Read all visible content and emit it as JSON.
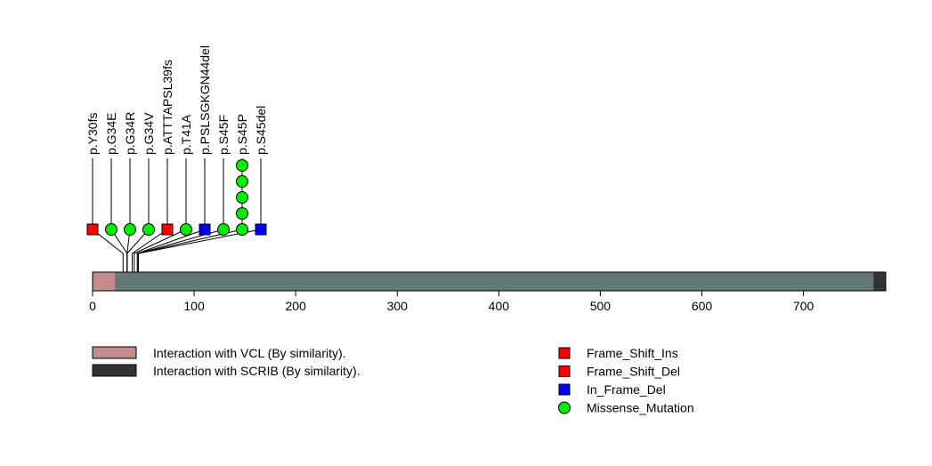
{
  "chart_data": {
    "type": "lollipop",
    "protein_length": 781,
    "x_axis": {
      "ticks": [
        0,
        100,
        200,
        300,
        400,
        500,
        600,
        700
      ],
      "range": [
        0,
        781
      ]
    },
    "domains": [
      {
        "name": "Interaction with VCL (By similarity).",
        "start": 1,
        "end": 22,
        "color": "#c48b8b"
      },
      {
        "name": "Interaction with SCRIB (By similarity).",
        "start": 770,
        "end": 781,
        "color": "#333333"
      }
    ],
    "backbone_color": "#627874",
    "mutations": [
      {
        "label": "p.Y30fs",
        "position": 30,
        "count": 1,
        "type": "Frame_Shift_Ins",
        "shape": "square"
      },
      {
        "label": "p.G34E",
        "position": 34,
        "count": 1,
        "type": "Missense_Mutation",
        "shape": "circle"
      },
      {
        "label": "p.G34R",
        "position": 34,
        "count": 1,
        "type": "Missense_Mutation",
        "shape": "circle"
      },
      {
        "label": "p.G34V",
        "position": 34,
        "count": 1,
        "type": "Missense_Mutation",
        "shape": "circle"
      },
      {
        "label": "p.ATTTAPSL39fs",
        "position": 39,
        "count": 1,
        "type": "Frame_Shift_Del",
        "shape": "square"
      },
      {
        "label": "p.T41A",
        "position": 41,
        "count": 1,
        "type": "Missense_Mutation",
        "shape": "circle"
      },
      {
        "label": "p.PSLSGKGN44del",
        "position": 44,
        "count": 1,
        "type": "In_Frame_Del",
        "shape": "square"
      },
      {
        "label": "p.S45F",
        "position": 45,
        "count": 1,
        "type": "Missense_Mutation",
        "shape": "circle"
      },
      {
        "label": "p.S45P",
        "position": 45,
        "count": 5,
        "type": "Missense_Mutation",
        "shape": "circle"
      },
      {
        "label": "p.S45del",
        "position": 45,
        "count": 1,
        "type": "In_Frame_Del",
        "shape": "square"
      }
    ],
    "mutation_legend": [
      {
        "label": "Frame_Shift_Ins",
        "color": "#ff0000",
        "shape": "square"
      },
      {
        "label": "Frame_Shift_Del",
        "color": "#ff0000",
        "shape": "square"
      },
      {
        "label": "In_Frame_Del",
        "color": "#0000ff",
        "shape": "square"
      },
      {
        "label": "Missense_Mutation",
        "color": "#00ee00",
        "shape": "circle"
      }
    ],
    "type_colors": {
      "Frame_Shift_Ins": "#ff0000",
      "Frame_Shift_Del": "#ff0000",
      "In_Frame_Del": "#0000ff",
      "Missense_Mutation": "#00ee00"
    }
  }
}
